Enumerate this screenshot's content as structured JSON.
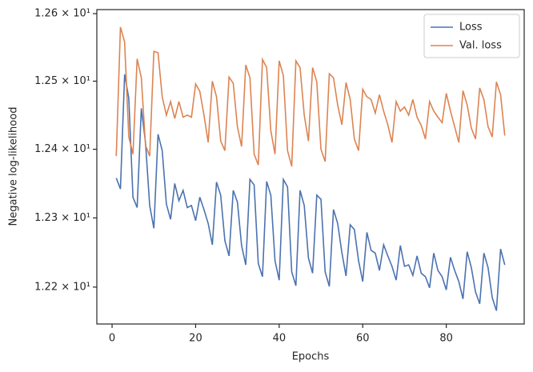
{
  "chart_data": {
    "type": "line",
    "xlabel": "Epochs",
    "ylabel": "Negative log-likelihood",
    "x": [
      1,
      2,
      3,
      4,
      5,
      6,
      7,
      8,
      9,
      10,
      11,
      12,
      13,
      14,
      15,
      16,
      17,
      18,
      19,
      20,
      21,
      22,
      23,
      24,
      25,
      26,
      27,
      28,
      29,
      30,
      31,
      32,
      33,
      34,
      35,
      36,
      37,
      38,
      39,
      40,
      41,
      42,
      43,
      44,
      45,
      46,
      47,
      48,
      49,
      50,
      51,
      52,
      53,
      54,
      55,
      56,
      57,
      58,
      59,
      60,
      61,
      62,
      63,
      64,
      65,
      66,
      67,
      68,
      69,
      70,
      71,
      72,
      73,
      74,
      75,
      76,
      77,
      78,
      79,
      80,
      81,
      82,
      83,
      84,
      85,
      86,
      87,
      88,
      89,
      90,
      91,
      92,
      93,
      94
    ],
    "series": [
      {
        "name": "Loss",
        "color": "#4c72b0",
        "values": [
          12.358,
          12.342,
          12.51,
          12.475,
          12.33,
          12.315,
          12.46,
          12.41,
          12.318,
          12.285,
          12.422,
          12.398,
          12.32,
          12.298,
          12.35,
          12.325,
          12.34,
          12.315,
          12.318,
          12.296,
          12.33,
          12.312,
          12.292,
          12.261,
          12.352,
          12.333,
          12.267,
          12.245,
          12.34,
          12.323,
          12.26,
          12.232,
          12.356,
          12.348,
          12.234,
          12.215,
          12.353,
          12.333,
          12.238,
          12.21,
          12.356,
          12.345,
          12.222,
          12.202,
          12.34,
          12.318,
          12.242,
          12.22,
          12.333,
          12.327,
          12.222,
          12.201,
          12.312,
          12.292,
          12.25,
          12.216,
          12.29,
          12.283,
          12.238,
          12.208,
          12.279,
          12.253,
          12.249,
          12.224,
          12.261,
          12.245,
          12.23,
          12.21,
          12.26,
          12.23,
          12.232,
          12.217,
          12.245,
          12.22,
          12.215,
          12.199,
          12.249,
          12.224,
          12.215,
          12.196,
          12.243,
          12.224,
          12.208,
          12.183,
          12.251,
          12.228,
          12.193,
          12.176,
          12.249,
          12.228,
          12.185,
          12.166,
          12.255,
          12.232
        ]
      },
      {
        "name": "Val. loss",
        "color": "#dd8452",
        "values": [
          12.39,
          12.58,
          12.558,
          12.418,
          12.393,
          12.533,
          12.505,
          12.406,
          12.39,
          12.544,
          12.542,
          12.477,
          12.45,
          12.47,
          12.445,
          12.47,
          12.447,
          12.45,
          12.447,
          12.496,
          12.485,
          12.45,
          12.41,
          12.5,
          12.477,
          12.412,
          12.398,
          12.506,
          12.497,
          12.433,
          12.404,
          12.524,
          12.505,
          12.393,
          12.377,
          12.532,
          12.52,
          12.427,
          12.393,
          12.53,
          12.508,
          12.398,
          12.375,
          12.53,
          12.52,
          12.45,
          12.412,
          12.52,
          12.499,
          12.4,
          12.382,
          12.511,
          12.505,
          12.465,
          12.436,
          12.498,
          12.473,
          12.415,
          12.398,
          12.488,
          12.477,
          12.473,
          12.453,
          12.48,
          12.456,
          12.436,
          12.41,
          12.47,
          12.456,
          12.462,
          12.45,
          12.473,
          12.447,
          12.435,
          12.415,
          12.47,
          12.456,
          12.447,
          12.439,
          12.482,
          12.456,
          12.433,
          12.41,
          12.486,
          12.465,
          12.431,
          12.415,
          12.49,
          12.473,
          12.433,
          12.418,
          12.499,
          12.48,
          12.42
        ]
      }
    ],
    "xlim": [
      -3.65,
      98.65
    ],
    "xticks": [
      0,
      20,
      40,
      60,
      80
    ],
    "ylim": [
      12.147,
      12.606
    ],
    "ylog": true,
    "yticks": [
      {
        "value": 12.2,
        "label": "1.22 × 10¹"
      },
      {
        "value": 12.3,
        "label": "1.23 × 10¹"
      },
      {
        "value": 12.4,
        "label": "1.24 × 10¹"
      },
      {
        "value": 12.5,
        "label": "1.25 × 10¹"
      },
      {
        "value": 12.6,
        "label": "1.26 × 10¹"
      }
    ],
    "legend": "upper right"
  }
}
